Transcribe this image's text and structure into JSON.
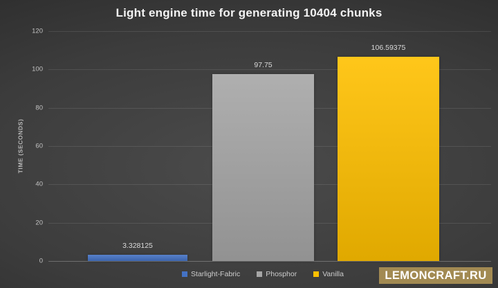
{
  "watermark": {
    "text": "LEMONCRAFT.RU",
    "bg": "#a28a52",
    "fg": "#ffffff"
  },
  "chart_data": {
    "type": "bar",
    "title": "Light engine time for generating 10404 chunks",
    "categories": [
      "Starlight-Fabric",
      "Phosphor",
      "Vanilla"
    ],
    "values": [
      3.328125,
      97.75,
      106.59375
    ],
    "value_labels": [
      "3.328125",
      "97.75",
      "106.59375"
    ],
    "bar_colors": [
      "#4472c4",
      "#a6a6a6",
      "#ffc000"
    ],
    "xlabel": "",
    "ylabel": "TIME (SECONDS)",
    "ylim": [
      0,
      120
    ],
    "yticks": [
      0,
      20,
      40,
      60,
      80,
      100,
      120
    ],
    "grid": "horizontal",
    "legend": [
      "Starlight-Fabric",
      "Phosphor",
      "Vanilla"
    ],
    "legend_position": "bottom",
    "background": "dark-gray-vignette"
  }
}
